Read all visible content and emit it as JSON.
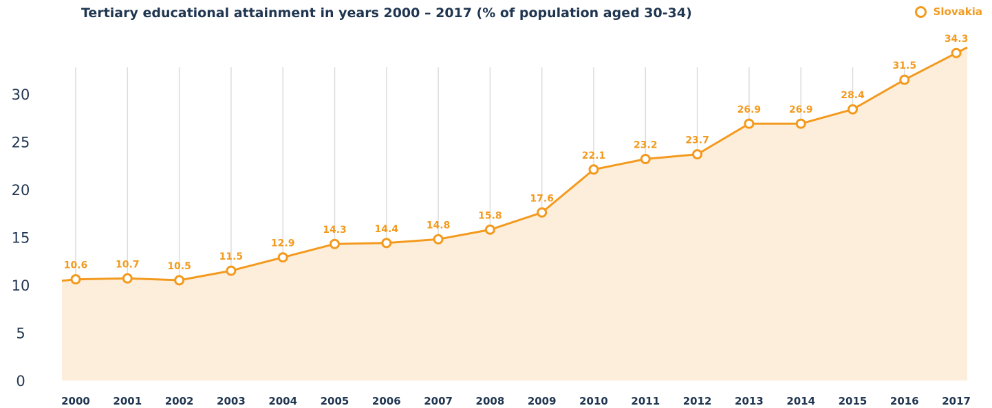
{
  "chart_data": {
    "type": "area",
    "title": "Tertiary educational attainment in years 2000 – 2017 (% of population aged 30-34)",
    "xlabel": "",
    "ylabel": "",
    "ylim": [
      0,
      32
    ],
    "yticks": [
      0,
      5,
      10,
      15,
      20,
      25,
      30
    ],
    "grid": "vertical",
    "legend_position": "top-right",
    "categories": [
      "2000",
      "2001",
      "2002",
      "2003",
      "2004",
      "2005",
      "2006",
      "2007",
      "2008",
      "2009",
      "2010",
      "2011",
      "2012",
      "2013",
      "2014",
      "2015",
      "2016",
      "2017"
    ],
    "series": [
      {
        "name": "Slovakia",
        "color": "#f39a1e",
        "fill": "#fdeedc",
        "values": [
          10.6,
          10.7,
          10.5,
          11.5,
          12.9,
          14.3,
          14.4,
          14.8,
          15.8,
          17.6,
          22.1,
          23.2,
          23.7,
          26.9,
          26.9,
          28.4,
          31.5,
          34.3
        ]
      }
    ]
  }
}
